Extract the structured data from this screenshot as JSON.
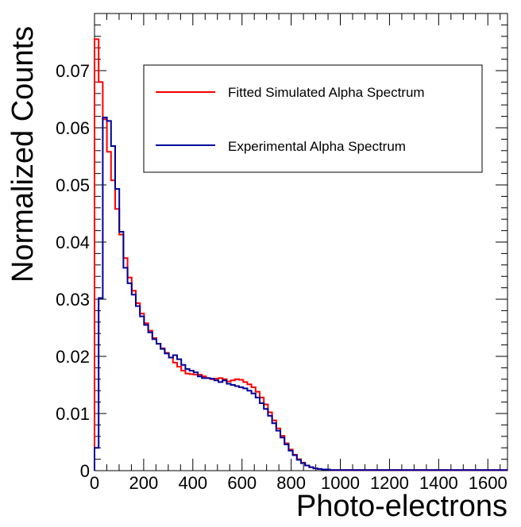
{
  "chart_data": {
    "type": "line",
    "style": "step-histogram",
    "title": "",
    "xlabel": "Photo-electrons",
    "ylabel": "Normalized Counts",
    "xlim": [
      0,
      1680
    ],
    "ylim": [
      0,
      0.08
    ],
    "x_ticks": [
      0,
      200,
      400,
      600,
      800,
      1000,
      1200,
      1400,
      1600
    ],
    "x_tick_labels": [
      "0",
      "200",
      "400",
      "600",
      "800",
      "1000",
      "1200",
      "1400",
      "1600"
    ],
    "y_ticks": [
      0,
      0.01,
      0.02,
      0.03,
      0.04,
      0.05,
      0.06,
      0.07
    ],
    "y_tick_labels": [
      "0",
      "0.01",
      "0.02",
      "0.03",
      "0.04",
      "0.05",
      "0.06",
      "0.07"
    ],
    "grid": false,
    "legend_position": "top-right",
    "bin_width": 16.8,
    "series": [
      {
        "name": "Fitted Simulated Alpha Spectrum",
        "color": "#ff0000",
        "values": [
          0.0755,
          0.068,
          0.0615,
          0.0558,
          0.0508,
          0.0458,
          0.0413,
          0.0372,
          0.0338,
          0.0315,
          0.0293,
          0.0275,
          0.0258,
          0.0245,
          0.0232,
          0.0222,
          0.0214,
          0.0206,
          0.0198,
          0.0189,
          0.0182,
          0.0175,
          0.017,
          0.0169,
          0.0168,
          0.0168,
          0.0165,
          0.0162,
          0.016,
          0.0161,
          0.0162,
          0.016,
          0.0156,
          0.0158,
          0.016,
          0.0159,
          0.0155,
          0.0151,
          0.0146,
          0.0138,
          0.0128,
          0.0116,
          0.0102,
          0.0088,
          0.0074,
          0.0061,
          0.0048,
          0.0037,
          0.0028,
          0.002,
          0.0014,
          0.0009,
          0.0006,
          0.0004,
          0.0003,
          0.0002,
          0.0002,
          0.0001,
          0.0001,
          0.0001,
          0.0001,
          0.0001,
          0.0001,
          0.0001,
          0.0001,
          0.0001,
          0.0001,
          0.0001,
          0.0001,
          0.0001,
          0.0001,
          0.0001,
          0.0001,
          0.0001,
          0.0001,
          0.0001,
          0.0001,
          0.0001,
          0.0001,
          0.0001,
          0.0001,
          0.0001,
          0.0001,
          0.0001,
          0.0001,
          0.0001,
          0.0001,
          0.0001,
          0.0001,
          0.0001,
          0.0001,
          0.0001,
          0.0001,
          0.0001,
          0.0001,
          0.0001,
          0.0001,
          0.0001,
          0.0001,
          0.0001
        ]
      },
      {
        "name": "Experimental Alpha Spectrum",
        "color": "#000099",
        "values": [
          0.004,
          0.0302,
          0.0618,
          0.0612,
          0.0568,
          0.0493,
          0.0418,
          0.0355,
          0.0328,
          0.0308,
          0.0288,
          0.027,
          0.0255,
          0.0242,
          0.023,
          0.0222,
          0.0213,
          0.0205,
          0.0198,
          0.0202,
          0.0195,
          0.0185,
          0.0178,
          0.0175,
          0.0172,
          0.0165,
          0.0162,
          0.0162,
          0.0161,
          0.0158,
          0.0155,
          0.0158,
          0.0152,
          0.015,
          0.0148,
          0.0146,
          0.0144,
          0.014,
          0.0135,
          0.0128,
          0.0118,
          0.0108,
          0.0096,
          0.0083,
          0.007,
          0.0058,
          0.0046,
          0.0035,
          0.0027,
          0.0019,
          0.0013,
          0.0009,
          0.0006,
          0.0004,
          0.0003,
          0.0002,
          0.0002,
          0.0001,
          0.0001,
          0.0001,
          0.0001,
          0.0001,
          0.0001,
          0.0001,
          0.0001,
          0.0001,
          0.0001,
          0.0001,
          0.0001,
          0.0001,
          0.0001,
          0.0001,
          0.0001,
          0.0001,
          0.0001,
          0.0001,
          0.0001,
          0.0001,
          0.0001,
          0.0001,
          0.0001,
          0.0001,
          0.0001,
          0.0001,
          0.0001,
          0.0001,
          0.0001,
          0.0001,
          0.0001,
          0.0001,
          0.0001,
          0.0001,
          0.0001,
          0.0001,
          0.0001,
          0.0001,
          0.0001,
          0.0001,
          0.0001,
          0.0001
        ]
      }
    ]
  }
}
